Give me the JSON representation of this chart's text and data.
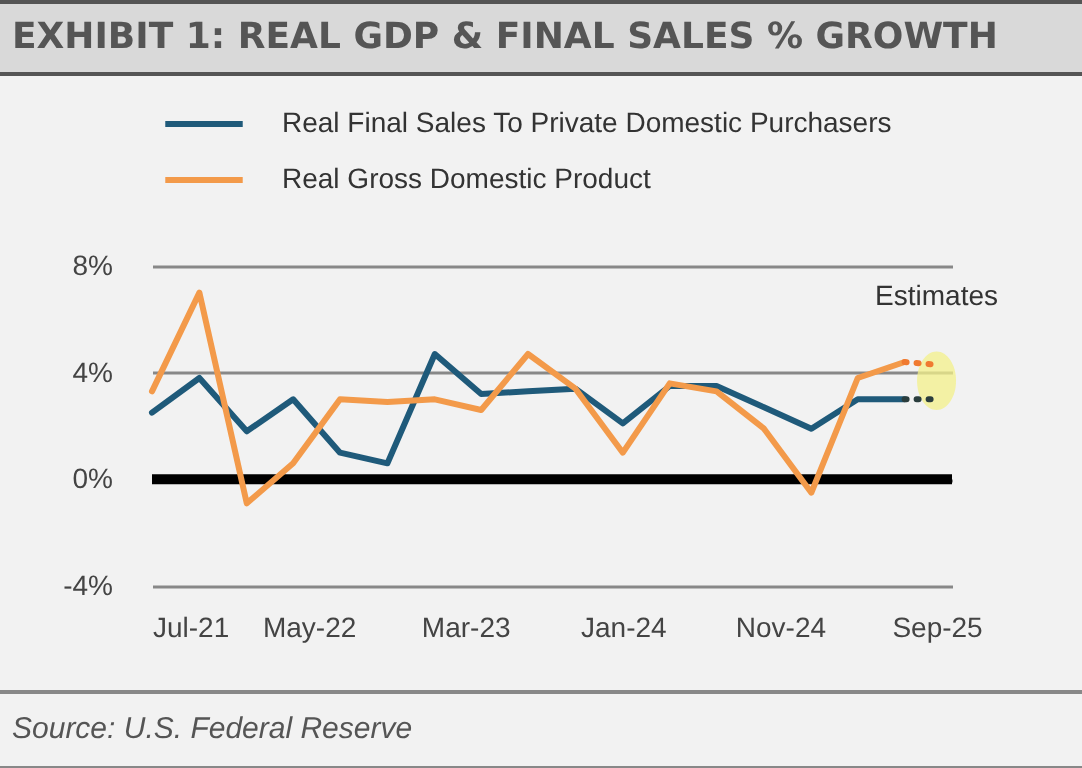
{
  "chart_data": {
    "type": "line",
    "title": "EXHIBIT 1: REAL GDP & FINAL SALES % GROWTH",
    "x": [
      "2021-07",
      "2021-10",
      "2022-01",
      "2022-04",
      "2022-07",
      "2022-10",
      "2023-01",
      "2023-04",
      "2023-07",
      "2023-10",
      "2024-01",
      "2024-04",
      "2024-07",
      "2024-10",
      "2025-01",
      "2025-04",
      "2025-07"
    ],
    "series": [
      {
        "name": "Real Final Sales To Private Domestic Purchasers",
        "color": "#1f5a7a",
        "values": [
          2.5,
          3.8,
          1.8,
          3.0,
          1.0,
          0.6,
          4.7,
          3.2,
          3.3,
          3.4,
          2.1,
          3.5,
          3.5,
          2.7,
          1.9,
          3.0,
          3.0
        ]
      },
      {
        "name": "Real Gross Domestic Product",
        "color": "#f39a4a",
        "values": [
          3.3,
          7.0,
          -0.9,
          0.6,
          3.0,
          2.9,
          3.0,
          2.6,
          4.7,
          3.4,
          1.0,
          3.6,
          3.3,
          1.9,
          -0.5,
          3.8,
          4.4
        ]
      },
      {
        "color": "#2a3d3d",
        "x": [
          "2025-07",
          "2025-09"
        ],
        "values": [
          3.0,
          3.0
        ],
        "line_style": "dotted"
      },
      {
        "color": "#f07a30",
        "x": [
          "2025-07",
          "2025-09"
        ],
        "values": [
          4.4,
          4.3
        ],
        "line_style": "dotted"
      }
    ],
    "xlim": [
      "2021-07",
      "2025-10"
    ],
    "xticks": [
      {
        "value": "2021-07",
        "label": "Jul-21"
      },
      {
        "value": "2022-05",
        "label": "May-22"
      },
      {
        "value": "2023-03",
        "label": "Mar-23"
      },
      {
        "value": "2024-01",
        "label": "Jan-24"
      },
      {
        "value": "2024-11",
        "label": "Nov-24"
      },
      {
        "value": "2025-09",
        "label": "Sep-25"
      }
    ],
    "ylim": [
      -4,
      8
    ],
    "yticks": [
      {
        "value": -4,
        "label": "-4%"
      },
      {
        "value": 0,
        "label": "0%"
      },
      {
        "value": 4,
        "label": "4%"
      },
      {
        "value": 8,
        "label": "8%"
      }
    ],
    "grid": "y",
    "legend": "top",
    "line_style": "solid",
    "ref_lines": [
      {
        "axis": "y",
        "value": 0,
        "color": "#000000"
      }
    ],
    "annotations": [
      "Source: U.S. Federal Reserve",
      {
        "text": "Estimates",
        "x": "2025-09",
        "y": 3.7
      }
    ]
  }
}
